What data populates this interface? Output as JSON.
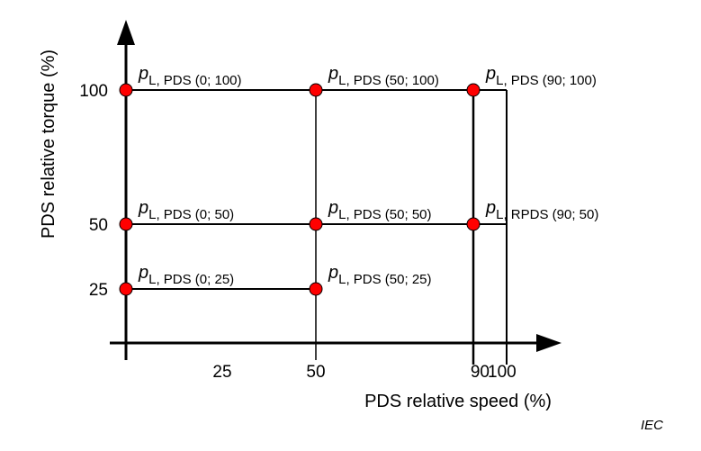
{
  "figure": {
    "x_axis_title": "PDS relative speed (%)",
    "y_axis_title": "PDS relative torque  (%)",
    "x_ticks": [
      "25",
      "50",
      "90",
      "100"
    ],
    "y_ticks": [
      "100",
      "50",
      "25"
    ],
    "credit": "IEC"
  },
  "points": [
    {
      "p": "p",
      "sub": "L, PDS (0; 100)",
      "speed": 0,
      "torque": 100
    },
    {
      "p": "p",
      "sub": "L, PDS (50; 100)",
      "speed": 50,
      "torque": 100
    },
    {
      "p": "p",
      "sub": "L, PDS (90; 100)",
      "speed": 90,
      "torque": 100
    },
    {
      "p": "p",
      "sub": "L, PDS (0; 50)",
      "speed": 0,
      "torque": 50
    },
    {
      "p": "p",
      "sub": "L, PDS (50; 50)",
      "speed": 50,
      "torque": 50
    },
    {
      "p": "p",
      "sub": "L, RPDS (90; 50)",
      "speed": 90,
      "torque": 50
    },
    {
      "p": "p",
      "sub": "L, PDS (0; 25)",
      "speed": 0,
      "torque": 25
    },
    {
      "p": "p",
      "sub": "L, PDS (50; 25)",
      "speed": 50,
      "torque": 25
    }
  ],
  "colors": {
    "point_fill": "#ff0000",
    "point_stroke": "#000000",
    "line": "#000000"
  }
}
